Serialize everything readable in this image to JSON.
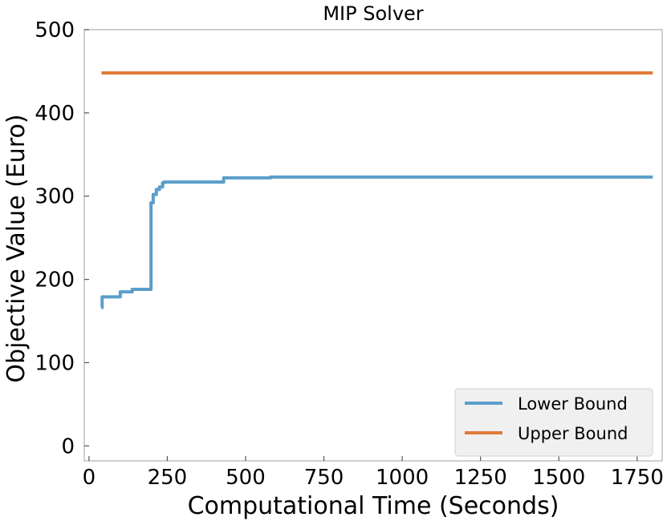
{
  "chart_data": {
    "type": "line",
    "title": "MIP Solver",
    "xlabel": "Computational Time (Seconds)",
    "ylabel": "Objective Value (Euro)",
    "xlim": [
      -15,
      1830
    ],
    "ylim": [
      -18,
      500
    ],
    "xticks": [
      0,
      250,
      500,
      750,
      1000,
      1250,
      1500,
      1750
    ],
    "yticks": [
      0,
      100,
      200,
      300,
      400,
      500
    ],
    "grid": false,
    "legend_position": "lower-right",
    "background": "#ffffff",
    "legend_background": "#f0f0f0",
    "series": [
      {
        "name": "Lower Bound",
        "color": "#5b9ec9",
        "x": [
          40,
          42,
          42,
          100,
          100,
          138,
          138,
          198,
          198,
          205,
          205,
          215,
          215,
          225,
          225,
          235,
          235,
          240,
          240,
          430,
          430,
          580,
          580,
          1800
        ],
        "y": [
          166,
          166,
          179,
          179,
          185,
          185,
          188,
          188,
          292,
          292,
          302,
          302,
          308,
          308,
          311,
          311,
          316,
          316,
          317,
          317,
          322,
          322,
          323,
          323
        ]
      },
      {
        "name": "Upper Bound",
        "color": "#e07b39",
        "x": [
          40,
          1800
        ],
        "y": [
          448,
          448
        ]
      }
    ]
  }
}
